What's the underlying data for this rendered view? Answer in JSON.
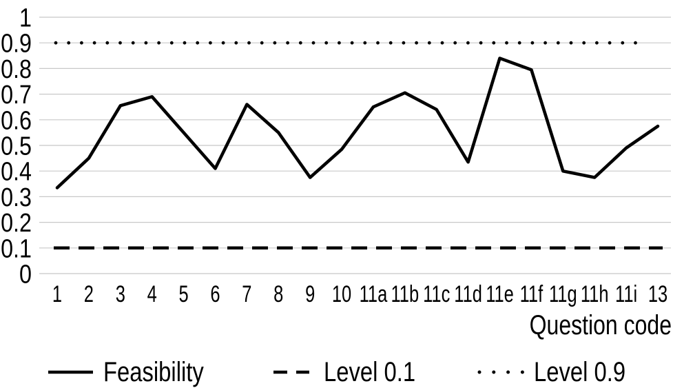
{
  "chart_data": {
    "type": "line",
    "title": "",
    "xlabel": "Question code",
    "ylabel": "",
    "ylim": [
      0,
      1
    ],
    "ytick_step": 0.1,
    "ytick_labels": [
      "0",
      "0.1",
      "0.2",
      "0.3",
      "0.4",
      "0.5",
      "0.6",
      "0.7",
      "0.8",
      "0.9",
      "1"
    ],
    "grid": "horizontal",
    "legend_position": "bottom",
    "categories": [
      "1",
      "2",
      "3",
      "4",
      "5",
      "6",
      "7",
      "8",
      "9",
      "10",
      "11a",
      "11b",
      "11c",
      "11d",
      "11e",
      "11f",
      "11g",
      "11h",
      "11i",
      "13"
    ],
    "series": [
      {
        "name": "Feasibility",
        "style": "solid",
        "values": [
          0.335,
          0.45,
          0.655,
          0.69,
          0.55,
          0.41,
          0.66,
          0.55,
          0.375,
          0.485,
          0.65,
          0.705,
          0.64,
          0.435,
          0.84,
          0.795,
          0.4,
          0.375,
          0.49,
          0.575
        ]
      },
      {
        "name": "Level 0.1",
        "style": "dashed",
        "constant_value": 0.1
      },
      {
        "name": "Level 0.9",
        "style": "dotted",
        "constant_value": 0.9
      }
    ],
    "colors": {
      "line": "#000000",
      "grid": "#c8c8c8",
      "text": "#000000",
      "background": "#ffffff"
    }
  }
}
